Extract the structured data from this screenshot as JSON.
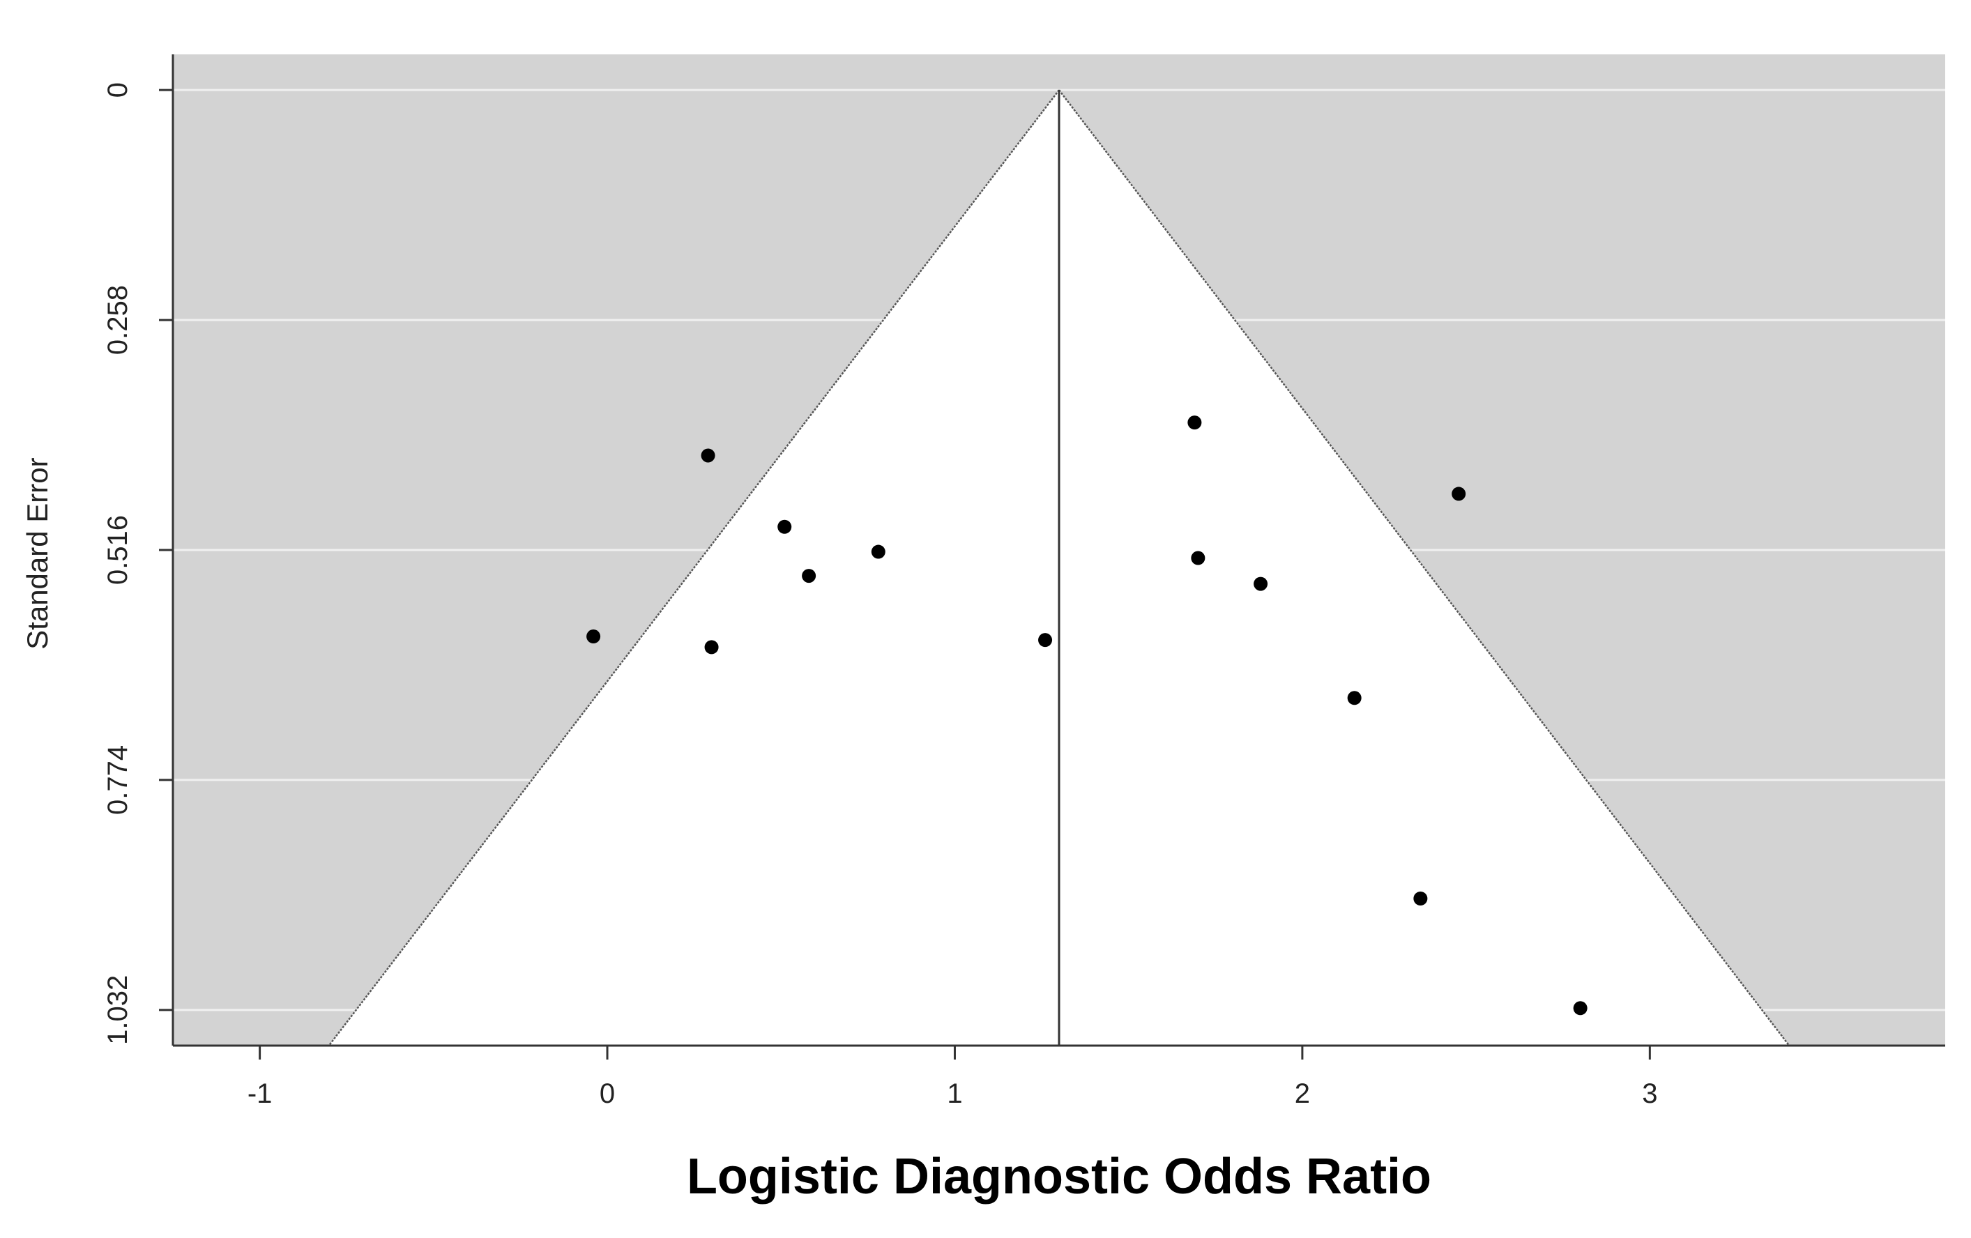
{
  "chart_data": {
    "type": "scatter",
    "subtype": "funnel-plot",
    "xlabel": "Logistic Diagnostic Odds Ratio",
    "ylabel": "Standard Error",
    "xlim": [
      -1.25,
      3.85
    ],
    "ylim": [
      1.072,
      -0.04
    ],
    "y_reversed": true,
    "x_ticks": [
      -1,
      0,
      1,
      2,
      3
    ],
    "x_tick_labels": [
      "-1",
      "0",
      "1",
      "2",
      "3"
    ],
    "y_ticks": [
      0,
      0.258,
      0.516,
      0.774,
      1.032
    ],
    "y_tick_labels": [
      "0",
      "0.258",
      "0.516",
      "0.774",
      "1.032"
    ],
    "grid": "horizontal",
    "summary_estimate": 1.3,
    "funnel_multiplier": 1.96,
    "points": [
      {
        "x": 0.29,
        "y": 0.41
      },
      {
        "x": 0.51,
        "y": 0.49
      },
      {
        "x": 0.78,
        "y": 0.518
      },
      {
        "x": 0.58,
        "y": 0.545
      },
      {
        "x": -0.04,
        "y": 0.613
      },
      {
        "x": 0.3,
        "y": 0.625
      },
      {
        "x": 1.26,
        "y": 0.617
      },
      {
        "x": 1.69,
        "y": 0.373
      },
      {
        "x": 1.7,
        "y": 0.525
      },
      {
        "x": 1.88,
        "y": 0.554
      },
      {
        "x": 2.45,
        "y": 0.453
      },
      {
        "x": 2.15,
        "y": 0.682
      },
      {
        "x": 2.34,
        "y": 0.907
      },
      {
        "x": 2.8,
        "y": 1.03
      }
    ],
    "colors": {
      "panel_background": "#d3d3d3",
      "funnel_fill": "#ffffff",
      "gridline": "#f0f0f0",
      "axis": "#333333",
      "point": "#000000"
    }
  }
}
